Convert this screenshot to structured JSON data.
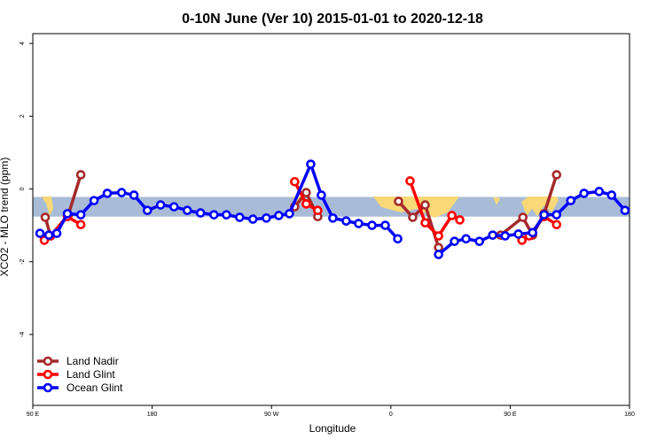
{
  "chart_data": {
    "type": "line",
    "title": "0-10N June (Ver 10)   2015-01-01 to 2020-12-18",
    "x_label": "Longitude",
    "y_label": "XCO2 - MLO trend (ppm)",
    "xlim": [
      90,
      540
    ],
    "xticks": [
      {
        "value": 90,
        "label": "90 E"
      },
      180,
      {
        "value": 270,
        "label": "90 W"
      },
      {
        "value": 360,
        "label": "0"
      },
      {
        "value": 450,
        "label": "90 E"
      },
      {
        "value": 540,
        "label": "180"
      }
    ],
    "ylim": [
      -5.95,
      4.27
    ],
    "yticks": [
      -4,
      -2,
      0,
      2,
      4
    ],
    "band": {
      "color": "#a8bcd8",
      "range": [
        -0.22,
        -0.76
      ]
    },
    "legend": "bottom-left",
    "series": [
      {
        "name": "Land Nadir",
        "color": "#a52a2a",
        "x": [
          99.4,
          103.4,
          116.8,
          126.2,
          200,
          287.5,
          296.2,
          304.9,
          340,
          365.8,
          376.5,
          385.9,
          396.0,
          430,
          442.8,
          459.6,
          466.9,
          475.6,
          485.0
        ],
        "values": [
          -0.78,
          -1.29,
          -0.71,
          0.39,
          null,
          -0.49,
          -0.1,
          -0.76,
          null,
          -0.34,
          -0.78,
          -0.44,
          -1.61,
          null,
          -1.27,
          -0.78,
          -1.27,
          -0.68,
          0.39
        ]
      },
      {
        "name": "Land Glint",
        "color": "#ff0000",
        "x": [
          98.7,
          103.4,
          116.1,
          126.2,
          200,
          287.5,
          296.2,
          304.9,
          340,
          374.5,
          385.9,
          396.0,
          406.0,
          412.0,
          430,
          458.9,
          464.3,
          475.6,
          485.0
        ],
        "values": [
          -1.41,
          -1.29,
          -0.76,
          -0.98,
          null,
          0.2,
          -0.41,
          -0.59,
          null,
          0.22,
          -0.93,
          -1.29,
          -0.73,
          -0.85,
          null,
          -1.41,
          -1.29,
          -0.76,
          -0.98
        ]
      },
      {
        "name": "Ocean Glint",
        "color": "#0000ff",
        "x": [
          95.4,
          102.1,
          108.1,
          116.1,
          126.2,
          136.2,
          146.2,
          157.0,
          166.3,
          176.4,
          186.4,
          196.5,
          206.5,
          216.5,
          226.6,
          236.0,
          246.0,
          256.0,
          266.1,
          275.5,
          283.5,
          299.6,
          307.6,
          316.3,
          326.3,
          335.7,
          345.8,
          355.8,
          365.2,
          380,
          396.0,
          408.0,
          416.7,
          426.8,
          436.8,
          446.2,
          456.2,
          466.9,
          475.6,
          485.0,
          495.7,
          505.7,
          517.1,
          526.5,
          536.6
        ],
        "values": [
          -1.22,
          -1.27,
          -1.22,
          -0.68,
          -0.71,
          -0.32,
          -0.12,
          -0.1,
          -0.17,
          -0.59,
          -0.44,
          -0.49,
          -0.59,
          -0.66,
          -0.71,
          -0.71,
          -0.78,
          -0.83,
          -0.8,
          -0.73,
          -0.68,
          0.68,
          -0.17,
          -0.8,
          -0.88,
          -0.95,
          -1.0,
          -1.0,
          -1.37,
          null,
          -1.8,
          -1.44,
          -1.37,
          -1.44,
          -1.27,
          -1.29,
          -1.24,
          -1.2,
          -0.71,
          -0.71,
          -0.32,
          -0.12,
          -0.07,
          -0.17,
          -0.59
        ]
      }
    ]
  }
}
